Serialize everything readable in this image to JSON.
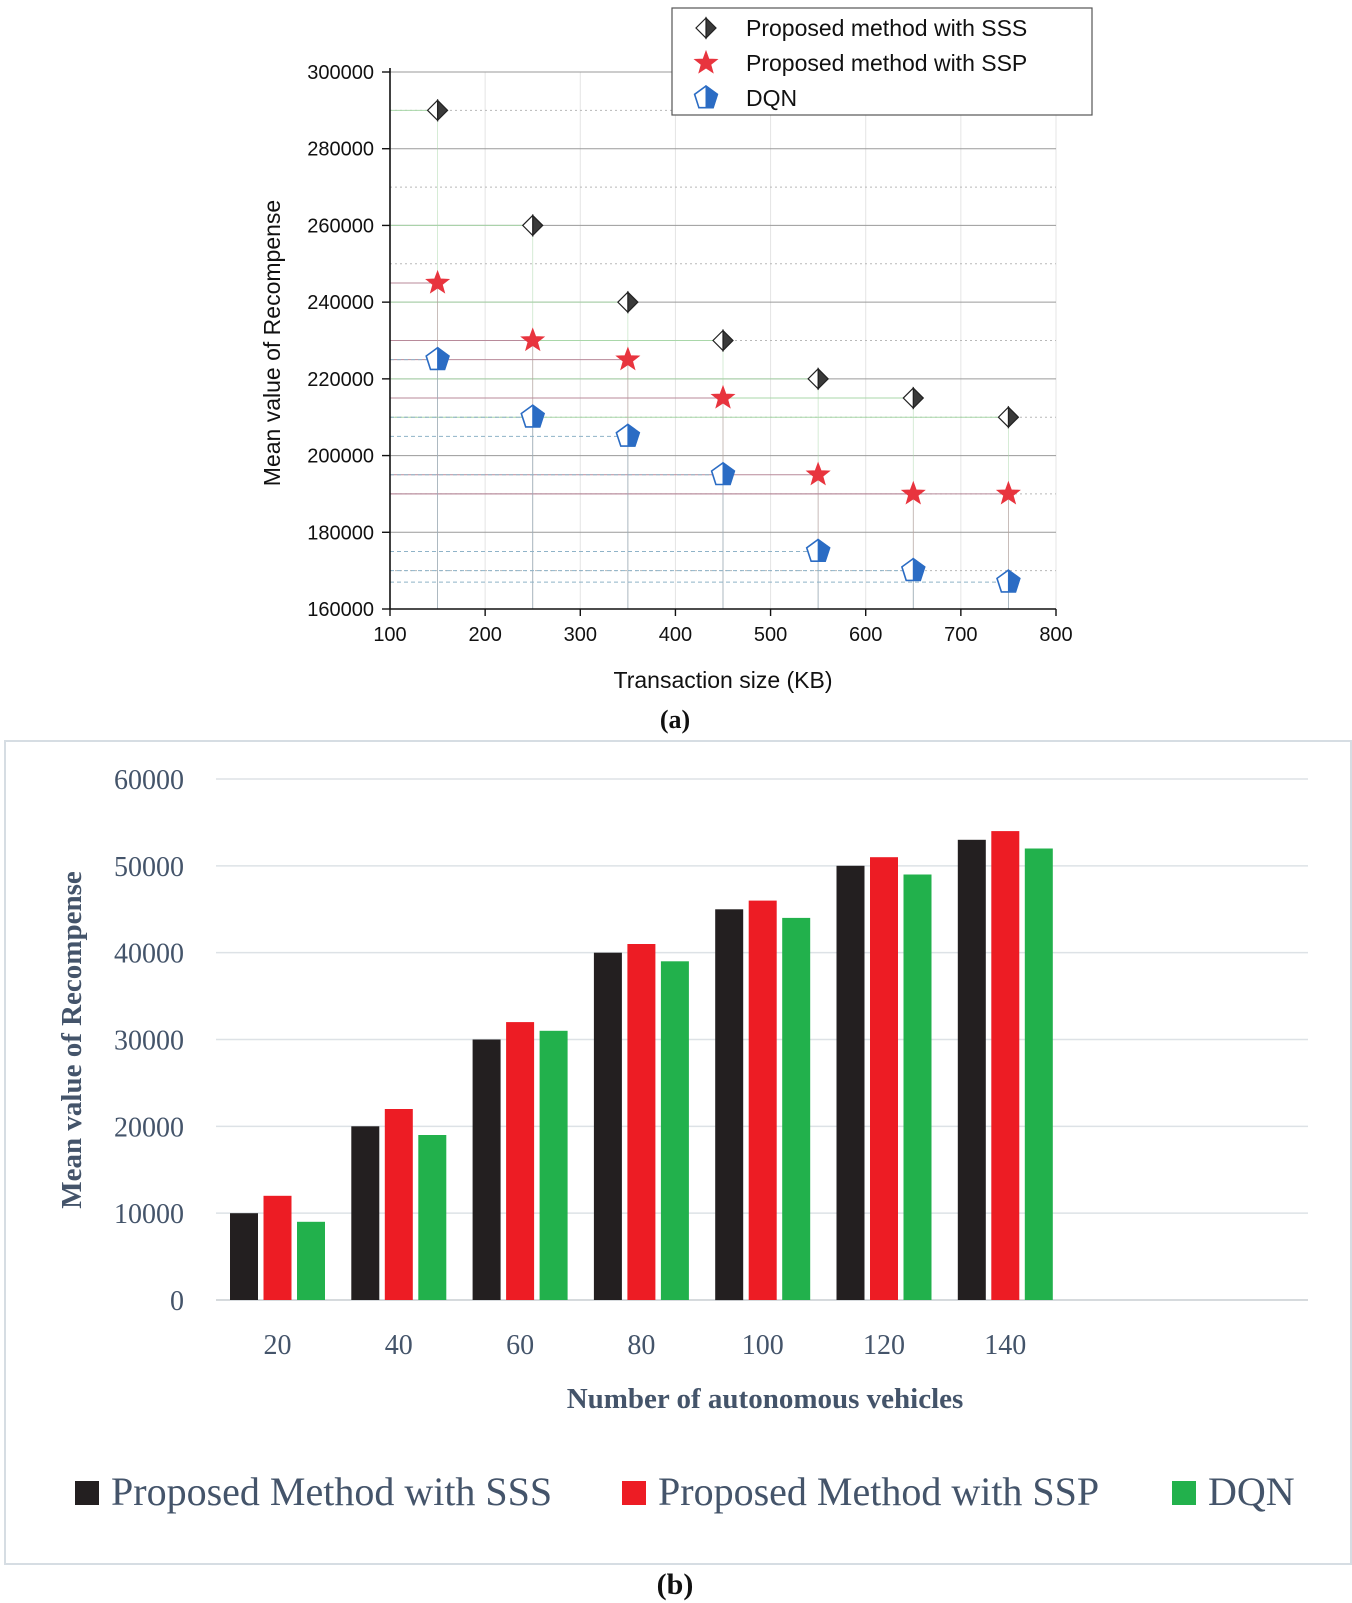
{
  "chart_data": [
    {
      "type": "scatter",
      "panel_label": "(a)",
      "xlabel": "Transaction size (KB)",
      "ylabel": "Mean value of Recompense",
      "xlim": [
        100,
        800
      ],
      "ylim": [
        160000,
        300000
      ],
      "x_ticks": [
        "100",
        "200",
        "300",
        "400",
        "500",
        "600",
        "700",
        "800"
      ],
      "y_ticks": [
        "160000",
        "180000",
        "200000",
        "220000",
        "240000",
        "260000",
        "280000",
        "300000"
      ],
      "legend_position": "top-right",
      "x": [
        150,
        250,
        350,
        450,
        550,
        650,
        750
      ],
      "series": [
        {
          "name": "Proposed method with SSS",
          "marker": "half-diamond",
          "color": "#3a3a3a",
          "values": [
            290000,
            260000,
            240000,
            230000,
            220000,
            215000,
            210000
          ]
        },
        {
          "name": "Proposed method with SSP",
          "marker": "star",
          "color": "#e8343e",
          "values": [
            245000,
            230000,
            225000,
            215000,
            195000,
            190000,
            190000
          ]
        },
        {
          "name": "DQN",
          "marker": "half-pentagon",
          "color": "#2b6cc4",
          "values": [
            225000,
            210000,
            205000,
            195000,
            175000,
            170000,
            167000
          ]
        }
      ]
    },
    {
      "type": "bar",
      "panel_label": "(b)",
      "xlabel": "Number of autonomous vehicles",
      "ylabel": "Mean value of Recompense",
      "ylim": [
        0,
        60000
      ],
      "y_ticks": [
        "0",
        "10000",
        "20000",
        "30000",
        "40000",
        "50000",
        "60000"
      ],
      "categories": [
        "20",
        "40",
        "60",
        "80",
        "100",
        "120",
        "140"
      ],
      "legend_position": "bottom",
      "series": [
        {
          "name": "Proposed Method with SSS",
          "color": "#231f20",
          "values": [
            10000,
            20000,
            30000,
            40000,
            45000,
            50000,
            53000
          ]
        },
        {
          "name": "Proposed Method with SSP",
          "color": "#ed1c24",
          "values": [
            12000,
            22000,
            32000,
            41000,
            46000,
            51000,
            54000
          ]
        },
        {
          "name": "DQN",
          "color": "#22b14c",
          "values": [
            9000,
            19000,
            31000,
            39000,
            44000,
            49000,
            52000
          ]
        }
      ]
    }
  ]
}
